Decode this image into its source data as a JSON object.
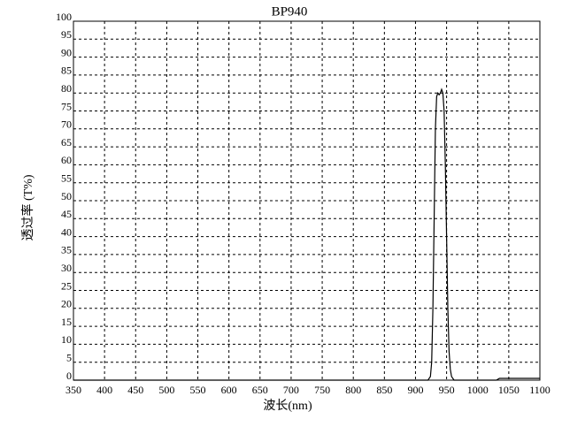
{
  "chart_data": {
    "type": "line",
    "title": "BP940",
    "xlabel": "波长(nm)",
    "ylabel": "透过率 (T%)",
    "x": [
      350,
      900,
      920,
      924,
      926,
      928,
      930,
      932,
      934,
      936,
      938,
      940,
      942,
      944,
      946,
      948,
      950,
      952,
      954,
      956,
      958,
      962,
      1030,
      1035,
      1100
    ],
    "values": [
      0,
      0,
      0,
      1,
      5,
      20,
      45,
      70,
      79,
      80,
      79.5,
      80,
      81,
      80,
      75,
      60,
      40,
      20,
      8,
      3,
      1,
      0,
      0,
      0.5,
      0.5
    ],
    "color": "#000000",
    "xlim": [
      350,
      1100
    ],
    "xticks": [
      350,
      400,
      450,
      500,
      550,
      600,
      650,
      700,
      750,
      800,
      850,
      900,
      950,
      1000,
      1050,
      1100
    ],
    "ylim": [
      0,
      100
    ],
    "yticks": [
      0,
      5,
      10,
      15,
      20,
      25,
      30,
      35,
      40,
      45,
      50,
      55,
      60,
      65,
      70,
      75,
      80,
      85,
      90,
      95,
      100
    ],
    "grid": true
  }
}
